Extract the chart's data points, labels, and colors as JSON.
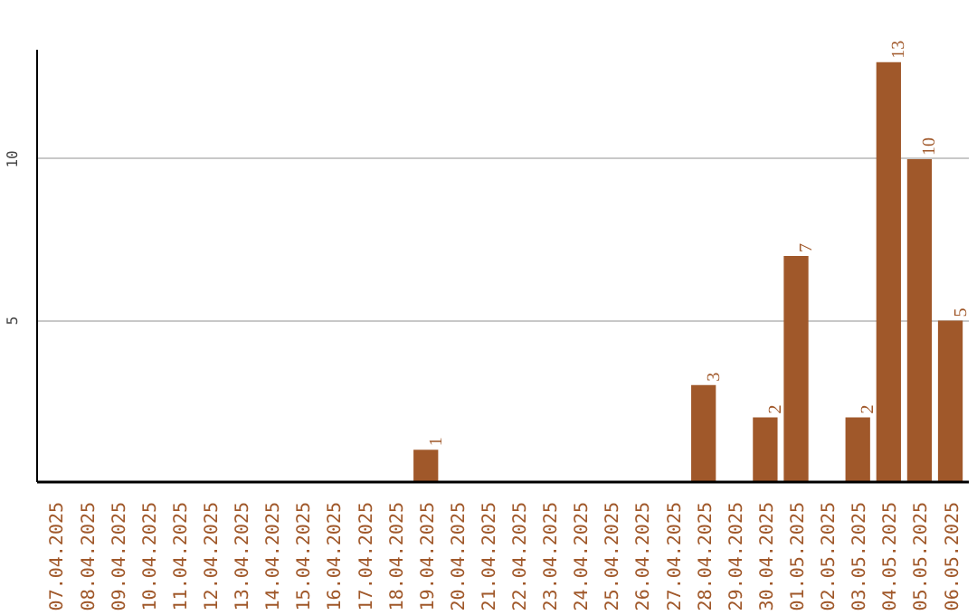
{
  "chart_data": {
    "type": "bar",
    "categories": [
      "07.04.2025",
      "08.04.2025",
      "09.04.2025",
      "10.04.2025",
      "11.04.2025",
      "12.04.2025",
      "13.04.2025",
      "14.04.2025",
      "15.04.2025",
      "16.04.2025",
      "17.04.2025",
      "18.04.2025",
      "19.04.2025",
      "20.04.2025",
      "21.04.2025",
      "22.04.2025",
      "23.04.2025",
      "24.04.2025",
      "25.04.2025",
      "26.04.2025",
      "27.04.2025",
      "28.04.2025",
      "29.04.2025",
      "30.04.2025",
      "01.05.2025",
      "02.05.2025",
      "03.05.2025",
      "04.05.2025",
      "05.05.2025",
      "06.05.2025"
    ],
    "values": [
      0,
      0,
      0,
      0,
      0,
      0,
      0,
      0,
      0,
      0,
      0,
      0,
      1,
      0,
      0,
      0,
      0,
      0,
      0,
      0,
      0,
      3,
      0,
      2,
      7,
      0,
      2,
      13,
      10,
      5
    ],
    "value_labels": [
      null,
      null,
      null,
      null,
      null,
      null,
      null,
      null,
      null,
      null,
      null,
      null,
      "1",
      null,
      null,
      null,
      null,
      null,
      null,
      null,
      null,
      "3",
      null,
      "2",
      "7",
      null,
      "2",
      "13",
      "10",
      "5"
    ],
    "color": "#a0582a",
    "ylim": [
      0,
      13.4
    ],
    "yticks": [
      5,
      10
    ],
    "grid": "y"
  }
}
